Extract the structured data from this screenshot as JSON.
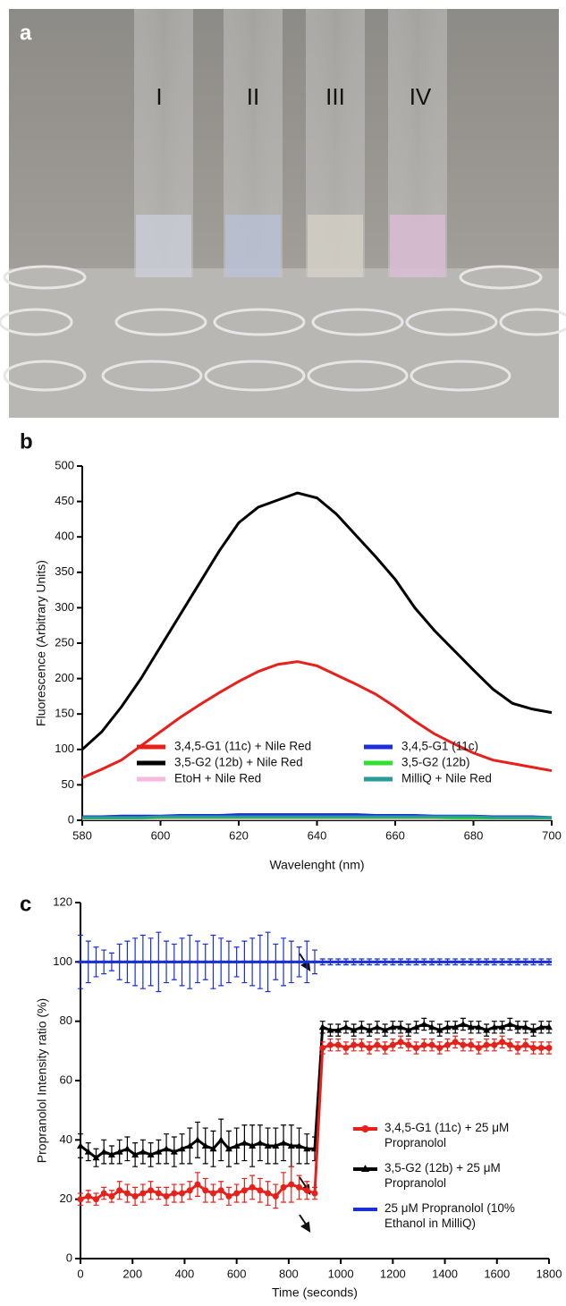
{
  "photo": {
    "label": "a",
    "tubes": [
      "I",
      "II",
      "III",
      "IV"
    ]
  },
  "chart_data": [
    {
      "type": "line",
      "label": "b",
      "xlabel": "Wavelenght (nm)",
      "ylabel": "Fluorescence (Arbitrary Units)",
      "x": [
        580,
        585,
        590,
        595,
        600,
        605,
        610,
        615,
        620,
        625,
        630,
        635,
        640,
        645,
        650,
        655,
        660,
        665,
        670,
        675,
        680,
        685,
        690,
        695,
        700
      ],
      "xlim": [
        580,
        700
      ],
      "xticks": [
        580,
        600,
        620,
        640,
        660,
        680,
        700
      ],
      "ylim": [
        0,
        500
      ],
      "yticks": [
        0,
        50,
        100,
        150,
        200,
        250,
        300,
        350,
        400,
        450,
        500
      ],
      "legend": "lower left",
      "series": [
        {
          "name": "3,4,5-G1 (11c) + Nile Red",
          "color": "#e8201a",
          "values": [
            60,
            72,
            85,
            105,
            125,
            145,
            163,
            180,
            196,
            210,
            220,
            224,
            218,
            205,
            192,
            178,
            160,
            140,
            122,
            108,
            95,
            85,
            80,
            75,
            70
          ]
        },
        {
          "name": "3,5-G2 (12b) + Nile Red",
          "color": "#000000",
          "values": [
            100,
            125,
            160,
            200,
            245,
            290,
            335,
            380,
            420,
            442,
            452,
            462,
            455,
            432,
            402,
            372,
            340,
            300,
            268,
            240,
            212,
            185,
            165,
            157,
            152
          ]
        },
        {
          "name": "EtoH + Nile Red",
          "color": "#f6b8dc",
          "values": [
            2,
            2,
            2,
            2,
            2,
            2,
            2,
            2,
            2,
            2,
            2,
            2,
            2,
            2,
            2,
            2,
            2,
            2,
            2,
            2,
            2,
            2,
            2,
            2,
            2
          ]
        },
        {
          "name": "3,4,5-G1 (11c)",
          "color": "#1a2fd8",
          "values": [
            5,
            5,
            6,
            6,
            6,
            7,
            7,
            7,
            8,
            8,
            8,
            8,
            8,
            8,
            8,
            7,
            7,
            7,
            6,
            6,
            6,
            5,
            5,
            5,
            4
          ]
        },
        {
          "name": "3,5-G2 (12b)",
          "color": "#2fe02f",
          "values": [
            3,
            3,
            3,
            3,
            4,
            4,
            4,
            4,
            4,
            4,
            4,
            4,
            4,
            4,
            4,
            4,
            4,
            4,
            4,
            3,
            3,
            3,
            3,
            3,
            3
          ]
        },
        {
          "name": "MilliQ + Nile Red",
          "color": "#2a9a9a",
          "values": [
            4,
            4,
            4,
            4,
            5,
            5,
            5,
            5,
            5,
            5,
            5,
            5,
            5,
            5,
            5,
            5,
            5,
            5,
            5,
            5,
            5,
            4,
            4,
            4,
            4
          ]
        }
      ]
    },
    {
      "type": "line",
      "label": "c",
      "xlabel": "Time (seconds)",
      "ylabel": "Propranolol Intensity ratio (%)",
      "x": [
        0,
        30,
        60,
        90,
        120,
        150,
        180,
        210,
        240,
        270,
        300,
        330,
        360,
        390,
        420,
        450,
        480,
        510,
        540,
        570,
        600,
        630,
        660,
        690,
        720,
        750,
        780,
        810,
        840,
        870,
        900,
        930,
        960,
        990,
        1020,
        1050,
        1080,
        1110,
        1140,
        1170,
        1200,
        1230,
        1260,
        1290,
        1320,
        1350,
        1380,
        1410,
        1440,
        1470,
        1500,
        1530,
        1560,
        1590,
        1620,
        1650,
        1680,
        1710,
        1740,
        1770,
        1800
      ],
      "xlim": [
        0,
        1800
      ],
      "xticks": [
        0,
        200,
        400,
        600,
        800,
        1000,
        1200,
        1400,
        1600,
        1800
      ],
      "ylim": [
        0,
        120
      ],
      "yticks": [
        0,
        20,
        40,
        60,
        80,
        100,
        120
      ],
      "legend": "lower right",
      "series": [
        {
          "name": "25 μM Propranolol (10% Ethanol in MilliQ)",
          "color": "#1a2fd8",
          "marker": "dash",
          "values": [
            100,
            100,
            100,
            100,
            100,
            100,
            100,
            100,
            100,
            100,
            100,
            100,
            100,
            100,
            100,
            100,
            100,
            100,
            100,
            100,
            100,
            100,
            100,
            100,
            100,
            100,
            100,
            100,
            100,
            100,
            100,
            100,
            100,
            100,
            100,
            100,
            100,
            100,
            100,
            100,
            100,
            100,
            100,
            100,
            100,
            100,
            100,
            100,
            100,
            100,
            100,
            100,
            100,
            100,
            100,
            100,
            100,
            100,
            100,
            100,
            100
          ],
          "errors": [
            9,
            7,
            5,
            4,
            3,
            6,
            7,
            8,
            9,
            8,
            10,
            7,
            6,
            8,
            9,
            7,
            6,
            9,
            8,
            7,
            5,
            7,
            8,
            9,
            10,
            6,
            8,
            7,
            5,
            7,
            4,
            1,
            1,
            1,
            1,
            1,
            1,
            1,
            1,
            1,
            1,
            1,
            1,
            1,
            1,
            1,
            1,
            1,
            1,
            1,
            1,
            1,
            1,
            1,
            1,
            1,
            1,
            1,
            1,
            1,
            1
          ]
        },
        {
          "name": "3,5-G2 (12b) + 25 μM Propranolol",
          "color": "#000000",
          "marker": "triangle",
          "values": [
            38,
            36,
            34,
            36,
            35,
            36,
            37,
            35,
            36,
            35,
            36,
            37,
            36,
            37,
            38,
            40,
            38,
            37,
            40,
            37,
            38,
            39,
            38,
            39,
            38,
            38,
            39,
            38,
            38,
            37,
            37,
            78,
            77,
            77,
            78,
            77,
            78,
            77,
            78,
            77,
            78,
            78,
            77,
            78,
            79,
            78,
            77,
            78,
            78,
            79,
            78,
            78,
            77,
            78,
            78,
            79,
            78,
            78,
            77,
            78,
            78
          ],
          "errors": [
            4,
            3,
            3,
            4,
            3,
            4,
            4,
            4,
            4,
            4,
            4,
            5,
            5,
            5,
            6,
            6,
            6,
            6,
            7,
            6,
            6,
            6,
            7,
            6,
            6,
            6,
            6,
            7,
            6,
            5,
            4,
            2,
            2,
            2,
            2,
            2,
            2,
            2,
            2,
            2,
            2,
            2,
            2,
            2,
            2,
            2,
            2,
            2,
            2,
            2,
            2,
            2,
            2,
            2,
            2,
            2,
            2,
            2,
            2,
            2,
            2
          ]
        },
        {
          "name": "3,4,5-G1 (11c) + 25 μM Propranolol",
          "color": "#e8201a",
          "marker": "circle",
          "values": [
            20,
            21,
            20,
            22,
            21,
            23,
            22,
            21,
            22,
            23,
            22,
            21,
            22,
            22,
            23,
            25,
            23,
            22,
            23,
            21,
            22,
            23,
            24,
            23,
            22,
            21,
            24,
            25,
            24,
            23,
            22,
            71,
            72,
            72,
            71,
            72,
            72,
            71,
            72,
            71,
            72,
            73,
            72,
            71,
            72,
            72,
            71,
            72,
            73,
            72,
            72,
            71,
            72,
            72,
            73,
            72,
            71,
            72,
            71,
            71,
            71
          ],
          "errors": [
            2,
            2,
            2,
            2,
            2,
            3,
            3,
            3,
            3,
            3,
            2,
            3,
            3,
            3,
            3,
            4,
            4,
            3,
            3,
            3,
            3,
            4,
            4,
            4,
            4,
            4,
            5,
            6,
            4,
            3,
            2,
            2,
            2,
            2,
            2,
            2,
            2,
            2,
            2,
            2,
            2,
            2,
            2,
            2,
            2,
            2,
            2,
            2,
            2,
            2,
            2,
            2,
            2,
            2,
            2,
            2,
            2,
            2,
            2,
            2,
            2
          ]
        }
      ]
    }
  ]
}
